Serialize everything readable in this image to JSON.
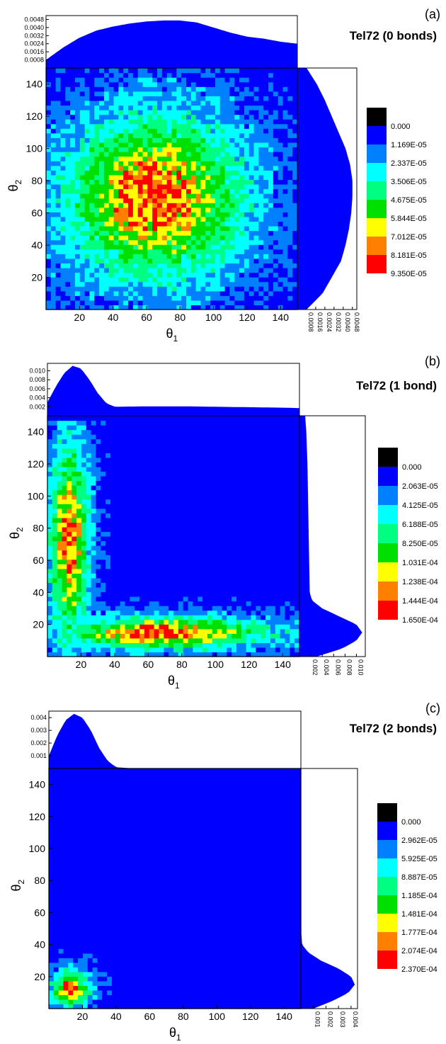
{
  "panels": [
    {
      "letter": "(a)",
      "title": "Tel72 (0 bonds)",
      "xlabel": "θ",
      "xlabel_sub": "1",
      "ylabel": "θ",
      "ylabel_sub": "2",
      "x_ticks": [
        "20",
        "40",
        "60",
        "80",
        "100",
        "120",
        "140"
      ],
      "y_ticks": [
        "20",
        "40",
        "60",
        "80",
        "100",
        "120",
        "140"
      ],
      "top_marginal_ticks": [
        "0.0008",
        "0.0016",
        "0.0024",
        "0.0032",
        "0.0040",
        "0.0048"
      ],
      "right_marginal_ticks": [
        "0.0008",
        "0.0016",
        "0.0024",
        "0.0032",
        "0.0040",
        "0.0048"
      ],
      "legend_values": [
        "0.000",
        "1.169E-05",
        "2.337E-05",
        "3.506E-05",
        "4.675E-05",
        "5.844E-05",
        "7.012E-05",
        "8.181E-05",
        "9.350E-05"
      ]
    },
    {
      "letter": "(b)",
      "title": "Tel72 (1 bond)",
      "xlabel": "θ",
      "xlabel_sub": "1",
      "ylabel": "θ",
      "ylabel_sub": "2",
      "x_ticks": [
        "20",
        "40",
        "60",
        "80",
        "100",
        "120",
        "140"
      ],
      "y_ticks": [
        "20",
        "40",
        "60",
        "80",
        "100",
        "120",
        "140"
      ],
      "top_marginal_ticks": [
        "0.002",
        "0.004",
        "0.006",
        "0.008",
        "0.010"
      ],
      "right_marginal_ticks": [
        "0.002",
        "0.004",
        "0.006",
        "0.008",
        "0.010"
      ],
      "legend_values": [
        "0.000",
        "2.063E-05",
        "4.125E-05",
        "6.188E-05",
        "8.250E-05",
        "1.031E-04",
        "1.238E-04",
        "1.444E-04",
        "1.650E-04"
      ]
    },
    {
      "letter": "(c)",
      "title": "Tel72 (2 bonds)",
      "xlabel": "θ",
      "xlabel_sub": "1",
      "ylabel": "θ",
      "ylabel_sub": "2",
      "x_ticks": [
        "20",
        "40",
        "60",
        "80",
        "100",
        "120",
        "140"
      ],
      "y_ticks": [
        "20",
        "40",
        "60",
        "80",
        "100",
        "120",
        "140"
      ],
      "top_marginal_ticks": [
        "0.001",
        "0.002",
        "0.003",
        "0.004"
      ],
      "right_marginal_ticks": [
        "0.001",
        "0.002",
        "0.003",
        "0.004"
      ],
      "legend_values": [
        "0.000",
        "2.962E-05",
        "5.925E-05",
        "8.887E-05",
        "1.185E-04",
        "1.481E-04",
        "1.777E-04",
        "2.074E-04",
        "2.370E-04"
      ]
    }
  ],
  "colors": {
    "levels": [
      "#000000",
      "#0000ff",
      "#0080ff",
      "#00ffff",
      "#00ff80",
      "#00e000",
      "#ffff00",
      "#ff8000",
      "#ff0000"
    ],
    "background_blue": "#0000ff",
    "marginal_fill": "#0000ff"
  },
  "chart_data": [
    {
      "type": "heatmap",
      "title": "Tel72 (0 bonds)",
      "xlabel": "θ1",
      "ylabel": "θ2",
      "xlim": [
        0,
        150
      ],
      "ylim": [
        0,
        150
      ],
      "levels": [
        0.0,
        1.169e-05,
        2.337e-05,
        3.506e-05,
        4.675e-05,
        5.844e-05,
        7.012e-05,
        8.181e-05,
        9.35e-05
      ],
      "peak": {
        "x": 65,
        "y": 70
      },
      "marginal_top": {
        "x": [
          0,
          10,
          20,
          30,
          40,
          50,
          60,
          70,
          80,
          90,
          100,
          110,
          120,
          130,
          140,
          150
        ],
        "y": [
          0.0008,
          0.002,
          0.003,
          0.0037,
          0.0041,
          0.0044,
          0.0046,
          0.0047,
          0.0047,
          0.0045,
          0.004,
          0.0035,
          0.0031,
          0.0029,
          0.0026,
          0.0024
        ]
      },
      "marginal_right": {
        "y": [
          0,
          10,
          20,
          30,
          40,
          50,
          60,
          70,
          80,
          90,
          100,
          110,
          120,
          130,
          140,
          150
        ],
        "x": [
          0.0008,
          0.0022,
          0.003,
          0.0038,
          0.0042,
          0.0045,
          0.0047,
          0.0048,
          0.0048,
          0.0046,
          0.0042,
          0.0036,
          0.003,
          0.0024,
          0.0017,
          0.0008
        ]
      }
    },
    {
      "type": "heatmap",
      "title": "Tel72 (1 bond)",
      "xlabel": "θ1",
      "ylabel": "θ2",
      "xlim": [
        0,
        150
      ],
      "ylim": [
        0,
        150
      ],
      "levels": [
        0.0,
        2.063e-05,
        4.125e-05,
        6.188e-05,
        8.25e-05,
        0.0001031,
        0.0001238,
        0.0001444,
        0.000165
      ],
      "peak": {
        "x": 70,
        "y": 15
      },
      "marginal_top": {
        "x": [
          0,
          5,
          10,
          15,
          20,
          25,
          30,
          35,
          40,
          60,
          80,
          100,
          120,
          140,
          150
        ],
        "y": [
          0.003,
          0.0065,
          0.0095,
          0.0111,
          0.0105,
          0.008,
          0.005,
          0.0028,
          0.002,
          0.0021,
          0.0021,
          0.002,
          0.0019,
          0.0018,
          0.0017
        ]
      },
      "marginal_right": {
        "y": [
          0,
          5,
          10,
          15,
          20,
          25,
          30,
          35,
          40,
          60,
          80,
          100,
          120,
          140,
          150
        ],
        "x": [
          0.003,
          0.0075,
          0.01,
          0.011,
          0.01,
          0.007,
          0.004,
          0.0022,
          0.0018,
          0.0017,
          0.0016,
          0.0015,
          0.0014,
          0.0012,
          0.001
        ]
      }
    },
    {
      "type": "heatmap",
      "title": "Tel72 (2 bonds)",
      "xlabel": "θ1",
      "ylabel": "θ2",
      "xlim": [
        0,
        150
      ],
      "ylim": [
        0,
        150
      ],
      "levels": [
        0.0,
        2.962e-05,
        5.925e-05,
        8.887e-05,
        0.0001185,
        0.0001481,
        0.0001777,
        0.0002074,
        0.000237
      ],
      "peak": {
        "x": 13,
        "y": 13
      },
      "marginal_top": {
        "x": [
          0,
          5,
          10,
          15,
          20,
          25,
          30,
          35,
          40,
          50,
          150
        ],
        "y": [
          0.001,
          0.0026,
          0.0038,
          0.0043,
          0.004,
          0.003,
          0.0016,
          0.0006,
          0.0001,
          0.0,
          0.0
        ]
      },
      "marginal_right": {
        "y": [
          0,
          5,
          10,
          15,
          20,
          25,
          30,
          35,
          40,
          50,
          150
        ],
        "x": [
          0.001,
          0.0026,
          0.0038,
          0.0043,
          0.004,
          0.003,
          0.0016,
          0.0006,
          0.0001,
          0.0,
          0.0
        ]
      }
    }
  ]
}
